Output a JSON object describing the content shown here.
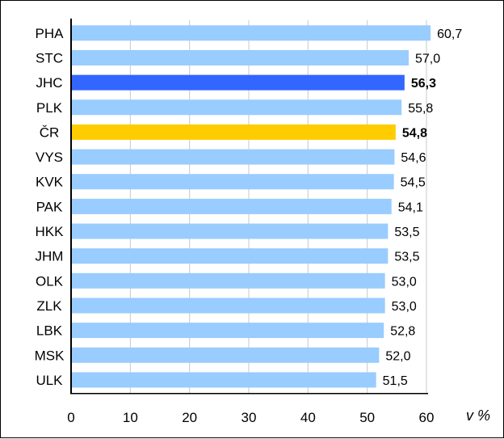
{
  "chart_data": {
    "type": "bar",
    "orientation": "horizontal",
    "categories": [
      "PHA",
      "STC",
      "JHC",
      "PLK",
      "ČR",
      "VYS",
      "KVK",
      "PAK",
      "HKK",
      "JHM",
      "OLK",
      "ZLK",
      "LBK",
      "MSK",
      "ULK"
    ],
    "values": [
      60.7,
      57.0,
      56.3,
      55.8,
      54.8,
      54.6,
      54.5,
      54.1,
      53.5,
      53.5,
      53.0,
      53.0,
      52.8,
      52.0,
      51.5
    ],
    "value_labels": [
      "60,7",
      "57,0",
      "56,3",
      "55,8",
      "54,8",
      "54,6",
      "54,5",
      "54,1",
      "53,5",
      "53,5",
      "53,0",
      "53,0",
      "52,8",
      "52,0",
      "51,5"
    ],
    "highlight": {
      "JHC": "#3366ff",
      "ČR": "#ffcc00"
    },
    "bold_labels": [
      "JHC",
      "ČR"
    ],
    "default_color": "#99ccff",
    "xlim": [
      0,
      60
    ],
    "xticks": [
      "0",
      "10",
      "20",
      "30",
      "40",
      "50",
      "60"
    ],
    "xlabel": "v %",
    "grid": true
  }
}
